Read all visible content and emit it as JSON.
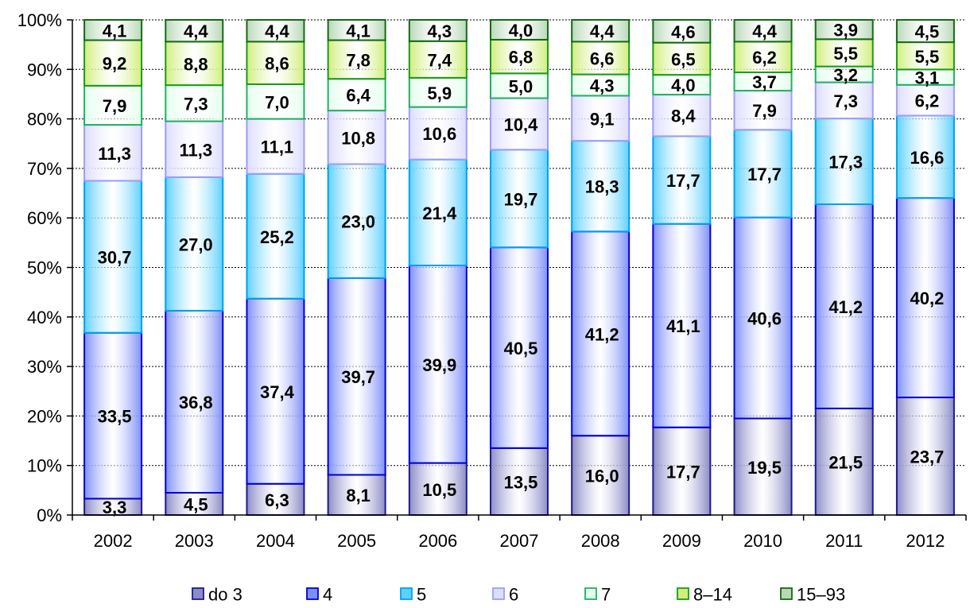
{
  "chart_data": {
    "type": "bar",
    "stacked": true,
    "percent_stacked": true,
    "categories": [
      "2002",
      "2003",
      "2004",
      "2005",
      "2006",
      "2007",
      "2008",
      "2009",
      "2010",
      "2011",
      "2012"
    ],
    "series": [
      {
        "name": "do 3",
        "values": [
          3.3,
          4.5,
          6.3,
          8.1,
          10.5,
          13.5,
          16.0,
          17.7,
          19.5,
          21.5,
          23.7
        ],
        "color": "#8b8bc8",
        "stroke": "#1c1c8c"
      },
      {
        "name": "4",
        "values": [
          33.5,
          36.8,
          37.4,
          39.7,
          39.9,
          40.5,
          41.2,
          41.1,
          40.6,
          41.2,
          40.2
        ],
        "color": "#7e8ff8",
        "stroke": "#0000d6"
      },
      {
        "name": "5",
        "values": [
          30.7,
          27.0,
          25.2,
          23.0,
          21.4,
          19.7,
          18.3,
          17.7,
          17.7,
          17.3,
          16.6
        ],
        "color": "#5ed0ff",
        "stroke": "#00a0f0"
      },
      {
        "name": "6",
        "values": [
          11.3,
          11.3,
          11.1,
          10.8,
          10.6,
          10.4,
          9.1,
          8.4,
          7.9,
          7.3,
          6.2
        ],
        "color": "#dcdcff",
        "stroke": "#9e9ef0"
      },
      {
        "name": "7",
        "values": [
          7.9,
          7.3,
          7.0,
          6.4,
          5.9,
          5.0,
          4.3,
          4.0,
          3.7,
          3.2,
          3.1
        ],
        "color": "#e4ffee",
        "stroke": "#20b060"
      },
      {
        "name": "8–14",
        "values": [
          9.2,
          8.8,
          8.6,
          7.8,
          7.4,
          6.8,
          6.6,
          6.5,
          6.2,
          5.5,
          5.5
        ],
        "color": "#d0ee7c",
        "stroke": "#1a9a1a"
      },
      {
        "name": "15–93",
        "values": [
          4.1,
          4.4,
          4.4,
          4.1,
          4.3,
          4.0,
          4.4,
          4.6,
          4.4,
          3.9,
          4.5
        ],
        "color": "#b8d8b8",
        "stroke": "#156a15"
      }
    ],
    "yticks": [
      "0%",
      "10%",
      "20%",
      "30%",
      "40%",
      "50%",
      "60%",
      "70%",
      "80%",
      "90%",
      "100%"
    ],
    "ylim": [
      0,
      100
    ],
    "grid": true,
    "legend": "bottom"
  }
}
